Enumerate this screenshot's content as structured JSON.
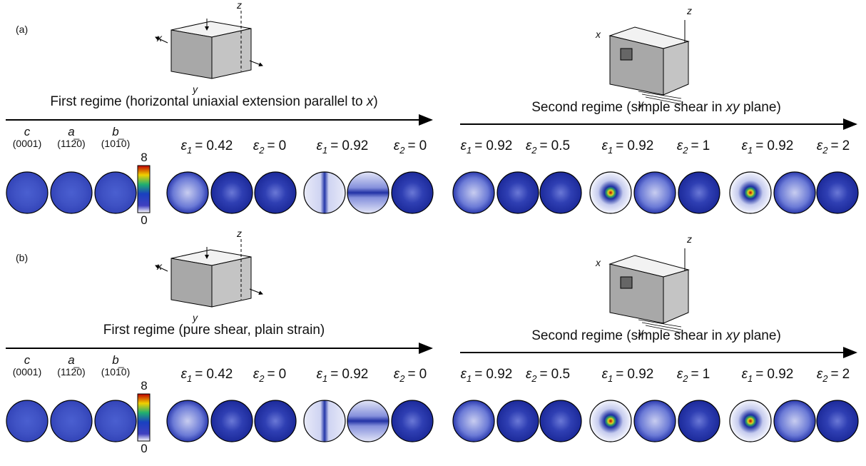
{
  "panels": [
    {
      "label": "(a)",
      "diagram1": {
        "axes": [
          "x",
          "y",
          "z"
        ]
      },
      "diagram2": {
        "axes": [
          "x",
          "y",
          "z"
        ]
      },
      "regime1": [
        "First regime (horizontal uniaxial extension parallel to ",
        "x",
        ")"
      ],
      "regime2": [
        "Second regime (simple shear in ",
        "xy",
        " plane)"
      ],
      "poles": [
        {
          "name": "c",
          "index": "(0001)"
        },
        {
          "name": "a",
          "index": "(112̅0)"
        },
        {
          "name": "b",
          "index": "(101̅0)"
        }
      ],
      "colorbar": {
        "max": 8,
        "min": 0
      },
      "strains": [
        {
          "symbol": "ε",
          "sub": "1",
          "sign": "=",
          "value": 0.42
        },
        {
          "symbol": "ε",
          "sub": "2",
          "sign": "=",
          "value": 0
        },
        {
          "symbol": "ε",
          "sub": "1",
          "sign": "=",
          "value": 0.92
        },
        {
          "symbol": "ε",
          "sub": "2",
          "sign": "=",
          "value": 0
        },
        {
          "symbol": "ε",
          "sub": "1",
          "sign": "=",
          "value": 0.92
        },
        {
          "symbol": "ε",
          "sub": "2",
          "sign": "=",
          "value": 0.5
        },
        {
          "symbol": "ε",
          "sub": "1",
          "sign": "=",
          "value": 0.92
        },
        {
          "symbol": "ε",
          "sub": "2",
          "sign": "=",
          "value": 1
        },
        {
          "symbol": "ε",
          "sub": "1",
          "sign": "=",
          "value": 0.92
        },
        {
          "symbol": "ε",
          "sub": "2",
          "sign": "=",
          "value": 2
        }
      ]
    },
    {
      "label": "(b)",
      "diagram1": {
        "axes": [
          "x",
          "y",
          "z"
        ]
      },
      "diagram2": {
        "axes": [
          "x",
          "y",
          "z"
        ]
      },
      "regime1": [
        "First regime (pure shear, plain strain)"
      ],
      "regime2": [
        "Second regime (simple shear in ",
        "xy",
        " plane)"
      ],
      "poles": [
        {
          "name": "c",
          "index": "(0001)"
        },
        {
          "name": "a",
          "index": "(112̅0)"
        },
        {
          "name": "b",
          "index": "(101̅0)"
        }
      ],
      "colorbar": {
        "max": 8,
        "min": 0
      },
      "strains": [
        {
          "symbol": "ε",
          "sub": "1",
          "sign": "=",
          "value": 0.42
        },
        {
          "symbol": "ε",
          "sub": "2",
          "sign": "=",
          "value": 0
        },
        {
          "symbol": "ε",
          "sub": "1",
          "sign": "=",
          "value": 0.92
        },
        {
          "symbol": "ε",
          "sub": "2",
          "sign": "=",
          "value": 0
        },
        {
          "symbol": "ε",
          "sub": "1",
          "sign": "=",
          "value": 0.92
        },
        {
          "symbol": "ε",
          "sub": "2",
          "sign": "=",
          "value": 0.5
        },
        {
          "symbol": "ε",
          "sub": "1",
          "sign": "=",
          "value": 0.92
        },
        {
          "symbol": "ε",
          "sub": "2",
          "sign": "=",
          "value": 1
        },
        {
          "symbol": "ε",
          "sub": "1",
          "sign": "=",
          "value": 0.92
        },
        {
          "symbol": "ε",
          "sub": "2",
          "sign": "=",
          "value": 2
        }
      ]
    }
  ]
}
